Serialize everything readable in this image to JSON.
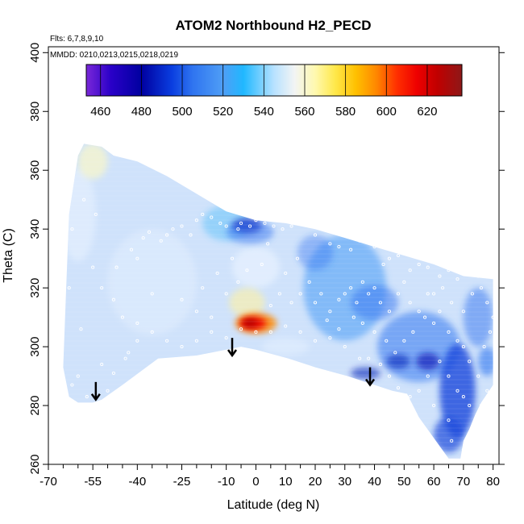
{
  "chart_data": {
    "type": "heatmap",
    "title": "ATOM2 Northbound H2_PECD",
    "notes": [
      "Flts: 6,7,8,9,10",
      "MMDD: 0210,0213,0215,0218,0219"
    ],
    "xlabel": "Latitude (deg N)",
    "ylabel": "Theta (C)",
    "xlim": [
      -70,
      82
    ],
    "ylim": [
      260,
      402
    ],
    "x_ticks": [
      -70,
      -55,
      -40,
      -25,
      -10,
      0,
      10,
      20,
      30,
      40,
      50,
      60,
      70,
      80
    ],
    "x_tick_labels": [
      "-70",
      "-55",
      "-40",
      "-25",
      "-10",
      "0",
      "10",
      "20",
      "30",
      "40",
      "50",
      "60",
      "70",
      "80"
    ],
    "x_minor_ticks": [
      -65,
      -60,
      -50,
      -45,
      -35,
      -30,
      -20,
      -15,
      -5,
      5,
      15,
      25,
      35,
      45,
      55,
      65,
      75
    ],
    "y_ticks": [
      260,
      280,
      300,
      320,
      340,
      360,
      380,
      400
    ],
    "y_tick_labels": [
      "260",
      "280",
      "300",
      "320",
      "340",
      "360",
      "380",
      "400"
    ],
    "colorbar": {
      "min": 453,
      "max": 637,
      "tick_values": [
        460,
        480,
        500,
        520,
        540,
        560,
        580,
        600,
        620
      ],
      "tick_labels": [
        "460",
        "480",
        "500",
        "520",
        "540",
        "560",
        "580",
        "600",
        "620"
      ],
      "boundaries": [
        460,
        480,
        500,
        520,
        540,
        560,
        580,
        600,
        620
      ],
      "colors": [
        {
          "v": 453,
          "c": "#7a28d8"
        },
        {
          "v": 465,
          "c": "#2a00c8"
        },
        {
          "v": 480,
          "c": "#0000a0"
        },
        {
          "v": 495,
          "c": "#0a3ee0"
        },
        {
          "v": 505,
          "c": "#2f74f0"
        },
        {
          "v": 520,
          "c": "#4f9ef6"
        },
        {
          "v": 530,
          "c": "#20b8ff"
        },
        {
          "v": 545,
          "c": "#b8e2ff"
        },
        {
          "v": 555,
          "c": "#f2f4f4"
        },
        {
          "v": 565,
          "c": "#fff9b0"
        },
        {
          "v": 575,
          "c": "#ffe84a"
        },
        {
          "v": 585,
          "c": "#ffc000"
        },
        {
          "v": 595,
          "c": "#ff8800"
        },
        {
          "v": 605,
          "c": "#ff3000"
        },
        {
          "v": 615,
          "c": "#ee0000"
        },
        {
          "v": 625,
          "c": "#c00000"
        },
        {
          "v": 637,
          "c": "#8e1818"
        }
      ]
    },
    "field_colors": {
      "background": "#cfe2fb",
      "light": "#e8f2ff",
      "pale_yellow": "#fbf8c8",
      "mid_blue": "#4f9ef6",
      "blue": "#2f74f0",
      "dark_blue": "#1848dc",
      "deep_blue": "#0a20b8",
      "cyan": "#3cb8fa",
      "yellow": "#fff2a0",
      "orange": "#ff8800",
      "red": "#ee0000",
      "dark_red": "#b00000",
      "white_point": "#ffffff"
    },
    "domain_outline": [
      [
        -58,
        369
      ],
      [
        -52,
        368
      ],
      [
        -48,
        365
      ],
      [
        -40,
        363
      ],
      [
        -30,
        358
      ],
      [
        -20,
        352
      ],
      [
        -10,
        346
      ],
      [
        0,
        343
      ],
      [
        10,
        342
      ],
      [
        20,
        340
      ],
      [
        30,
        337
      ],
      [
        40,
        334
      ],
      [
        50,
        331
      ],
      [
        60,
        328
      ],
      [
        70,
        324
      ],
      [
        80,
        323
      ],
      [
        80,
        287
      ],
      [
        76,
        281
      ],
      [
        74,
        277
      ],
      [
        72,
        272
      ],
      [
        70,
        268
      ],
      [
        69,
        262
      ],
      [
        65,
        262
      ],
      [
        60,
        269
      ],
      [
        55,
        276
      ],
      [
        51,
        284
      ],
      [
        46,
        285
      ],
      [
        40,
        287
      ],
      [
        31,
        290
      ],
      [
        20,
        293
      ],
      [
        11,
        296
      ],
      [
        0,
        299
      ],
      [
        -5,
        300
      ],
      [
        -10,
        299
      ],
      [
        -20,
        297
      ],
      [
        -33,
        296
      ],
      [
        -45,
        287
      ],
      [
        -52,
        282
      ],
      [
        -55,
        281
      ],
      [
        -60,
        281
      ],
      [
        -63,
        283
      ],
      [
        -65,
        293
      ],
      [
        -64,
        320
      ],
      [
        -63,
        345
      ],
      [
        -60,
        365
      ]
    ],
    "blobs": [
      {
        "x": -60,
        "y": 345,
        "sx": 6,
        "sy": 16,
        "value": 552,
        "color_key": "light",
        "opacity": 0.6
      },
      {
        "x": -55,
        "y": 363,
        "sx": 5,
        "sy": 6,
        "value": 562,
        "color_key": "pale_yellow",
        "opacity": 0.7
      },
      {
        "x": -35,
        "y": 322,
        "sx": 15,
        "sy": 18,
        "value": 550,
        "color_key": "light",
        "opacity": 0.4
      },
      {
        "x": -10,
        "y": 342,
        "sx": 8,
        "sy": 6,
        "value": 530,
        "color_key": "cyan",
        "opacity": 0.4
      },
      {
        "x": 0,
        "y": 327,
        "sx": 8,
        "sy": 7,
        "value": 555,
        "color_key": "light",
        "opacity": 0.7
      },
      {
        "x": -3,
        "y": 315,
        "sx": 6,
        "sy": 5,
        "value": 568,
        "color_key": "yellow",
        "opacity": 0.6
      },
      {
        "x": -3,
        "y": 341,
        "sx": 5,
        "sy": 2.5,
        "value": 485,
        "color_key": "deep_blue",
        "opacity": 0.8
      },
      {
        "x": -2,
        "y": 339,
        "sx": 8,
        "sy": 4,
        "value": 505,
        "color_key": "blue",
        "opacity": 0.5
      },
      {
        "x": 0,
        "y": 308,
        "sx": 7,
        "sy": 3.5,
        "value": 590,
        "color_key": "orange",
        "opacity": 0.85
      },
      {
        "x": -1,
        "y": 308,
        "sx": 4.5,
        "sy": 2.2,
        "value": 615,
        "color_key": "red",
        "opacity": 0.9
      },
      {
        "x": -2,
        "y": 308,
        "sx": 2.5,
        "sy": 1.4,
        "value": 628,
        "color_key": "dark_red",
        "opacity": 0.9
      },
      {
        "x": 30,
        "y": 320,
        "sx": 14,
        "sy": 18,
        "value": 520,
        "color_key": "mid_blue",
        "opacity": 0.6
      },
      {
        "x": 40,
        "y": 315,
        "sx": 8,
        "sy": 6,
        "value": 505,
        "color_key": "blue",
        "opacity": 0.5
      },
      {
        "x": 20,
        "y": 332,
        "sx": 6,
        "sy": 6,
        "value": 510,
        "color_key": "blue",
        "opacity": 0.4
      },
      {
        "x": 55,
        "y": 300,
        "sx": 14,
        "sy": 12,
        "value": 505,
        "color_key": "blue",
        "opacity": 0.55
      },
      {
        "x": 68,
        "y": 285,
        "sx": 6,
        "sy": 16,
        "value": 495,
        "color_key": "dark_blue",
        "opacity": 0.8
      },
      {
        "x": 65,
        "y": 270,
        "sx": 5,
        "sy": 6,
        "value": 490,
        "color_key": "dark_blue",
        "opacity": 0.7
      },
      {
        "x": 48,
        "y": 295,
        "sx": 4,
        "sy": 2.5,
        "value": 485,
        "color_key": "deep_blue",
        "opacity": 0.6
      },
      {
        "x": 58,
        "y": 295,
        "sx": 4,
        "sy": 3,
        "value": 485,
        "color_key": "deep_blue",
        "opacity": 0.7
      },
      {
        "x": 37,
        "y": 291,
        "sx": 5,
        "sy": 2,
        "value": 485,
        "color_key": "deep_blue",
        "opacity": 0.6
      },
      {
        "x": 75,
        "y": 310,
        "sx": 5,
        "sy": 10,
        "value": 510,
        "color_key": "blue",
        "opacity": 0.5
      },
      {
        "x": 78,
        "y": 295,
        "sx": 3,
        "sy": 5,
        "value": 505,
        "color_key": "blue",
        "opacity": 0.6
      },
      {
        "x": 10,
        "y": 300,
        "sx": 8,
        "sy": 3,
        "value": 550,
        "color_key": "light",
        "opacity": 0.5
      }
    ],
    "arrows": [
      {
        "x": -54,
        "y_top": 288,
        "y_bottom": 282
      },
      {
        "x": -8,
        "y_top": 303,
        "y_bottom": 297
      },
      {
        "x": 38.5,
        "y_top": 293,
        "y_bottom": 287
      }
    ],
    "points": [
      [
        -57,
        283
      ],
      [
        -62,
        287
      ],
      [
        -48,
        291
      ],
      [
        -50,
        285
      ],
      [
        -45,
        286
      ],
      [
        -43,
        298
      ],
      [
        -40,
        302
      ],
      [
        -44,
        296
      ],
      [
        -52,
        294
      ],
      [
        -59,
        306
      ],
      [
        -60,
        290
      ],
      [
        -55,
        327
      ],
      [
        -47,
        327
      ],
      [
        -42,
        333
      ],
      [
        -40,
        330
      ],
      [
        -38,
        337
      ],
      [
        -36,
        339
      ],
      [
        -32,
        336
      ],
      [
        -30,
        338
      ],
      [
        -28,
        340
      ],
      [
        -25,
        341
      ],
      [
        -22,
        338
      ],
      [
        -20,
        343
      ],
      [
        -18,
        345
      ],
      [
        -15,
        344
      ],
      [
        -12,
        342
      ],
      [
        -10,
        341
      ],
      [
        -6,
        340
      ],
      [
        -5,
        342
      ],
      [
        -2,
        341
      ],
      [
        0,
        343
      ],
      [
        3,
        342
      ],
      [
        6,
        341
      ],
      [
        9,
        340
      ],
      [
        12,
        341
      ],
      [
        15,
        342
      ],
      [
        20,
        338
      ],
      [
        25,
        335
      ],
      [
        28,
        334
      ],
      [
        32,
        333
      ],
      [
        35,
        336
      ],
      [
        40,
        334
      ],
      [
        43,
        328
      ],
      [
        45,
        330
      ],
      [
        48,
        331
      ],
      [
        52,
        326
      ],
      [
        55,
        328
      ],
      [
        58,
        327
      ],
      [
        62,
        324
      ],
      [
        65,
        326
      ],
      [
        68,
        323
      ],
      [
        72,
        325
      ],
      [
        75,
        324
      ],
      [
        -52,
        320
      ],
      [
        -48,
        316
      ],
      [
        -35,
        318
      ],
      [
        -25,
        316
      ],
      [
        -20,
        312
      ],
      [
        -15,
        310
      ],
      [
        -10,
        318
      ],
      [
        -6,
        322
      ],
      [
        -3,
        326
      ],
      [
        2,
        328
      ],
      [
        5,
        314
      ],
      [
        8,
        318
      ],
      [
        12,
        315
      ],
      [
        15,
        318
      ],
      [
        20,
        315
      ],
      [
        22,
        318
      ],
      [
        25,
        312
      ],
      [
        28,
        316
      ],
      [
        30,
        318
      ],
      [
        32,
        320
      ],
      [
        34,
        315
      ],
      [
        36,
        322
      ],
      [
        38,
        318
      ],
      [
        40,
        320
      ],
      [
        42,
        315
      ],
      [
        45,
        312
      ],
      [
        48,
        318
      ],
      [
        50,
        322
      ],
      [
        52,
        315
      ],
      [
        55,
        312
      ],
      [
        58,
        318
      ],
      [
        60,
        308
      ],
      [
        62,
        312
      ],
      [
        65,
        305
      ],
      [
        68,
        302
      ],
      [
        70,
        300
      ],
      [
        72,
        295
      ],
      [
        75,
        290
      ],
      [
        78,
        285
      ],
      [
        76,
        280
      ],
      [
        72,
        280
      ],
      [
        70,
        283
      ],
      [
        68,
        285
      ],
      [
        65,
        290
      ],
      [
        62,
        295
      ],
      [
        58,
        290
      ],
      [
        55,
        285
      ],
      [
        52,
        283
      ],
      [
        48,
        286
      ],
      [
        45,
        290
      ],
      [
        42,
        294
      ],
      [
        38,
        296
      ],
      [
        35,
        296
      ],
      [
        30,
        300
      ],
      [
        25,
        303
      ],
      [
        20,
        302
      ],
      [
        15,
        305
      ],
      [
        10,
        307
      ],
      [
        5,
        305
      ],
      [
        0,
        305
      ],
      [
        -5,
        306
      ],
      [
        -10,
        303
      ],
      [
        -15,
        305
      ],
      [
        -20,
        302
      ],
      [
        -25,
        300
      ],
      [
        -30,
        302
      ],
      [
        -35,
        305
      ],
      [
        -40,
        308
      ],
      [
        -45,
        310
      ],
      [
        55,
        274
      ],
      [
        60,
        280
      ],
      [
        65,
        275
      ],
      [
        66,
        268
      ],
      [
        70,
        265
      ],
      [
        73,
        272
      ],
      [
        77,
        300
      ],
      [
        79,
        305
      ],
      [
        80,
        310
      ],
      [
        78,
        315
      ],
      [
        -63,
        320
      ],
      [
        -62,
        340
      ],
      [
        -58,
        350
      ],
      [
        -54,
        345
      ],
      [
        18,
        322
      ],
      [
        10,
        325
      ],
      [
        14,
        330
      ],
      [
        4,
        335
      ],
      [
        -8,
        330
      ],
      [
        -13,
        325
      ],
      [
        -18,
        320
      ],
      [
        47,
        298
      ],
      [
        50,
        302
      ],
      [
        53,
        305
      ],
      [
        57,
        310
      ],
      [
        44,
        302
      ],
      [
        40,
        305
      ],
      [
        36,
        308
      ],
      [
        33,
        310
      ],
      [
        28,
        306
      ],
      [
        24,
        309
      ],
      [
        60,
        318
      ],
      [
        63,
        320
      ],
      [
        66,
        315
      ],
      [
        70,
        312
      ],
      [
        73,
        318
      ],
      [
        76,
        320
      ]
    ]
  }
}
